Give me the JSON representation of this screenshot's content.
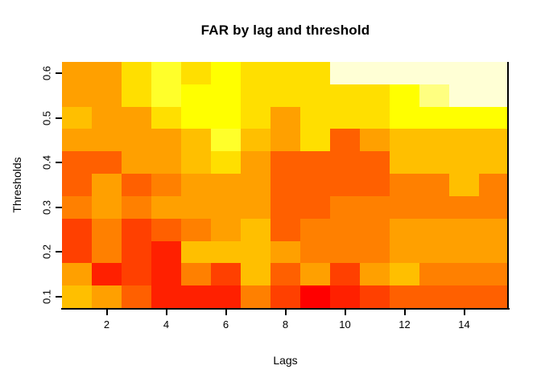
{
  "title": "FAR by lag and threshold",
  "chart_data": {
    "type": "heatmap",
    "title": "FAR by lag and threshold",
    "xlabel": "Lags",
    "ylabel": "Thresholds",
    "lags": [
      1,
      2,
      3,
      4,
      5,
      6,
      7,
      8,
      9,
      10,
      11,
      12,
      13,
      14,
      15
    ],
    "thresholds": [
      0.1,
      0.15,
      0.2,
      0.25,
      0.3,
      0.35,
      0.4,
      0.45,
      0.5,
      0.55,
      0.6
    ],
    "x_tick_values": [
      2,
      4,
      6,
      8,
      10,
      12,
      14
    ],
    "x_tick_labels": [
      "2",
      "4",
      "6",
      "8",
      "10",
      "12",
      "14"
    ],
    "y_tick_values": [
      0.1,
      0.2,
      0.3,
      0.4,
      0.5,
      0.6
    ],
    "y_tick_labels": [
      "0.1",
      "0.2",
      "0.3",
      "0.4",
      "0.5",
      "0.6"
    ],
    "palette": [
      "#FF0000",
      "#FF2000",
      "#FF4000",
      "#FF6000",
      "#FF8000",
      "#FFA000",
      "#FFBF00",
      "#FFDF00",
      "#FFFF00",
      "#FFFF2A",
      "#FFFF80",
      "#FFFFD5"
    ],
    "palette_scale": "heat colors: index 0 = red (high FAR) to index 11 = cream (low FAR)",
    "rows_order": "levels rows follow thresholds array (ascending); row 0 is drawn at the bottom of the plot",
    "levels": [
      [
        6,
        5,
        3,
        1,
        1,
        1,
        4,
        2,
        0,
        1,
        2,
        3,
        3,
        3,
        3
      ],
      [
        5,
        1,
        2,
        1,
        4,
        2,
        6,
        3,
        5,
        2,
        5,
        6,
        4,
        4,
        4
      ],
      [
        2,
        4,
        2,
        1,
        6,
        6,
        6,
        5,
        4,
        4,
        4,
        5,
        5,
        5,
        5
      ],
      [
        2,
        4,
        2,
        3,
        4,
        5,
        6,
        3,
        4,
        4,
        4,
        5,
        5,
        5,
        5
      ],
      [
        4,
        5,
        4,
        5,
        5,
        5,
        5,
        3,
        3,
        4,
        4,
        4,
        4,
        4,
        4
      ],
      [
        3,
        5,
        3,
        4,
        5,
        5,
        5,
        3,
        3,
        3,
        3,
        4,
        4,
        6,
        4
      ],
      [
        3,
        3,
        5,
        5,
        6,
        7,
        5,
        3,
        3,
        3,
        3,
        6,
        6,
        6,
        6
      ],
      [
        5,
        5,
        5,
        5,
        6,
        9,
        6,
        5,
        7,
        3,
        5,
        6,
        6,
        6,
        6
      ],
      [
        6,
        5,
        5,
        7,
        8,
        8,
        7,
        5,
        7,
        7,
        7,
        8,
        8,
        8,
        8
      ],
      [
        5,
        5,
        7,
        9,
        8,
        8,
        7,
        7,
        7,
        7,
        7,
        8,
        10,
        11,
        11
      ],
      [
        5,
        5,
        7,
        9,
        7,
        8,
        7,
        7,
        7,
        11,
        11,
        11,
        11,
        11,
        11
      ]
    ],
    "grid": false,
    "legend": "none",
    "xlim": [
      0.5,
      15.5
    ],
    "ylim": [
      0.075,
      0.625
    ]
  }
}
